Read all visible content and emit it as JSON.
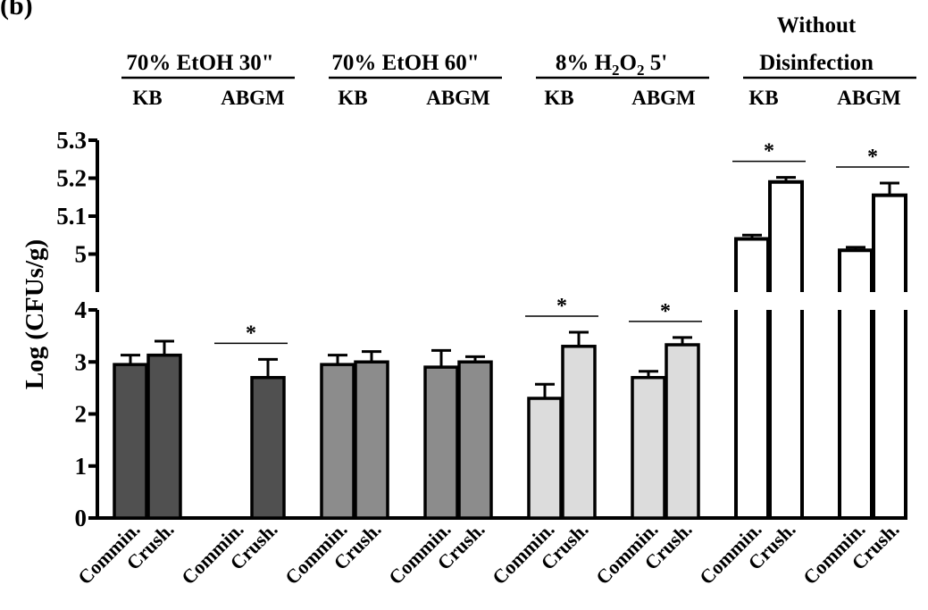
{
  "panel_label": "(b)",
  "chart_data": {
    "type": "bar",
    "ylabel": "Log (CFUs/g)",
    "yaxis": {
      "break": true,
      "lower_range": [
        0,
        4
      ],
      "upper_range": [
        4.9,
        5.3
      ],
      "lower_ticks": [
        "0",
        "1",
        "2",
        "3",
        "4"
      ],
      "upper_ticks": [
        "5",
        "5.1",
        "5.2",
        "5.3"
      ]
    },
    "groups": [
      {
        "label": "70% EtOH 30\"",
        "label_lines": [
          "70% EtOH 30\""
        ],
        "subgroups": [
          {
            "label": "KB",
            "significant": false,
            "bars": [
              {
                "category": "Commin.",
                "value": 2.95,
                "error": 0.18
              },
              {
                "category": "Crush.",
                "value": 3.13,
                "error": 0.27
              }
            ]
          },
          {
            "label": "ABGM",
            "significant": true,
            "bars": [
              {
                "category": "Commin.",
                "value": 0,
                "error": 0
              },
              {
                "category": "Crush.",
                "value": 2.7,
                "error": 0.35
              }
            ]
          }
        ]
      },
      {
        "label": "70% EtOH 60\"",
        "label_lines": [
          "70% EtOH 60\""
        ],
        "subgroups": [
          {
            "label": "KB",
            "significant": false,
            "bars": [
              {
                "category": "Commin.",
                "value": 2.95,
                "error": 0.18
              },
              {
                "category": "Crush.",
                "value": 3.0,
                "error": 0.2
              }
            ]
          },
          {
            "label": "ABGM",
            "significant": false,
            "bars": [
              {
                "category": "Commin.",
                "value": 2.9,
                "error": 0.32
              },
              {
                "category": "Crush.",
                "value": 3.0,
                "error": 0.1
              }
            ]
          }
        ]
      },
      {
        "label": "8% H2O2 5'",
        "label_parts": [
          "8% H",
          "2",
          "O",
          "2",
          " 5'"
        ],
        "subgroups": [
          {
            "label": "KB",
            "significant": true,
            "bars": [
              {
                "category": "Commin.",
                "value": 2.3,
                "error": 0.27
              },
              {
                "category": "Crush.",
                "value": 3.3,
                "error": 0.27
              }
            ]
          },
          {
            "label": "ABGM",
            "significant": true,
            "bars": [
              {
                "category": "Commin.",
                "value": 2.7,
                "error": 0.12
              },
              {
                "category": "Crush.",
                "value": 3.33,
                "error": 0.14
              }
            ]
          }
        ]
      },
      {
        "label": "Without Disinfection",
        "label_lines": [
          "Without",
          "Disinfection"
        ],
        "subgroups": [
          {
            "label": "KB",
            "significant": true,
            "bars": [
              {
                "category": "Commin.",
                "value": 5.04,
                "error": 0.01
              },
              {
                "category": "Crush.",
                "value": 5.19,
                "error": 0.012
              }
            ]
          },
          {
            "label": "ABGM",
            "significant": true,
            "bars": [
              {
                "category": "Commin.",
                "value": 5.01,
                "error": 0.008
              },
              {
                "category": "Crush.",
                "value": 5.155,
                "error": 0.032
              }
            ]
          }
        ]
      }
    ],
    "significance_marker": "*",
    "colors": {
      "group_fills": [
        "#505050",
        "#8c8c8c",
        "#dcdcdc",
        "#ffffff"
      ],
      "stroke": "#000000"
    }
  }
}
